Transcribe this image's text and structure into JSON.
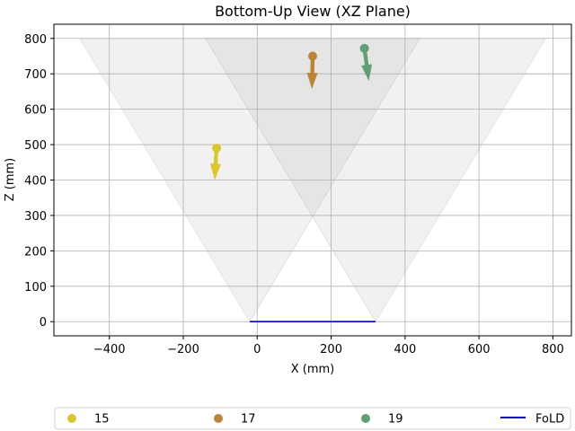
{
  "chart_data": {
    "type": "scatter",
    "title": "Bottom-Up View (XZ Plane)",
    "xlabel": "X (mm)",
    "ylabel": "Z (mm)",
    "xlim": [
      -550,
      850
    ],
    "ylim": [
      -40,
      840
    ],
    "xticks": [
      -400,
      -200,
      0,
      200,
      400,
      600,
      800
    ],
    "yticks": [
      0,
      100,
      200,
      300,
      400,
      500,
      600,
      700,
      800
    ],
    "xtick_labels": [
      "−400",
      "−200",
      "0",
      "200",
      "400",
      "600",
      "800"
    ],
    "ytick_labels": [
      "0",
      "100",
      "200",
      "300",
      "400",
      "500",
      "600",
      "700",
      "800"
    ],
    "grid": true,
    "legend_position": "bottom",
    "fov_regions": [
      {
        "polygon": [
          [
            -480,
            800
          ],
          [
            -20,
            800
          ],
          [
            -20,
            0
          ]
        ],
        "apex": [
          -20,
          0
        ],
        "left_top": [
          -480,
          800
        ],
        "right_top": [
          440,
          800
        ]
      },
      {
        "apex": [
          320,
          0
        ],
        "left_top": [
          -140,
          800
        ],
        "right_top": [
          780,
          800
        ]
      }
    ],
    "series": [
      {
        "name": "15",
        "color": "#dcc72b",
        "point": [
          -110,
          490
        ],
        "arrow_end": [
          -115,
          400
        ]
      },
      {
        "name": "17",
        "color": "#bb8437",
        "point": [
          150,
          750
        ],
        "arrow_end": [
          148,
          657
        ]
      },
      {
        "name": "19",
        "color": "#5f9f72",
        "point": [
          290,
          772
        ],
        "arrow_end": [
          302,
          680
        ]
      }
    ],
    "line": {
      "name": "FoLD",
      "color": "#0000cc",
      "x": [
        -20,
        320
      ],
      "y": [
        0,
        0
      ]
    }
  }
}
